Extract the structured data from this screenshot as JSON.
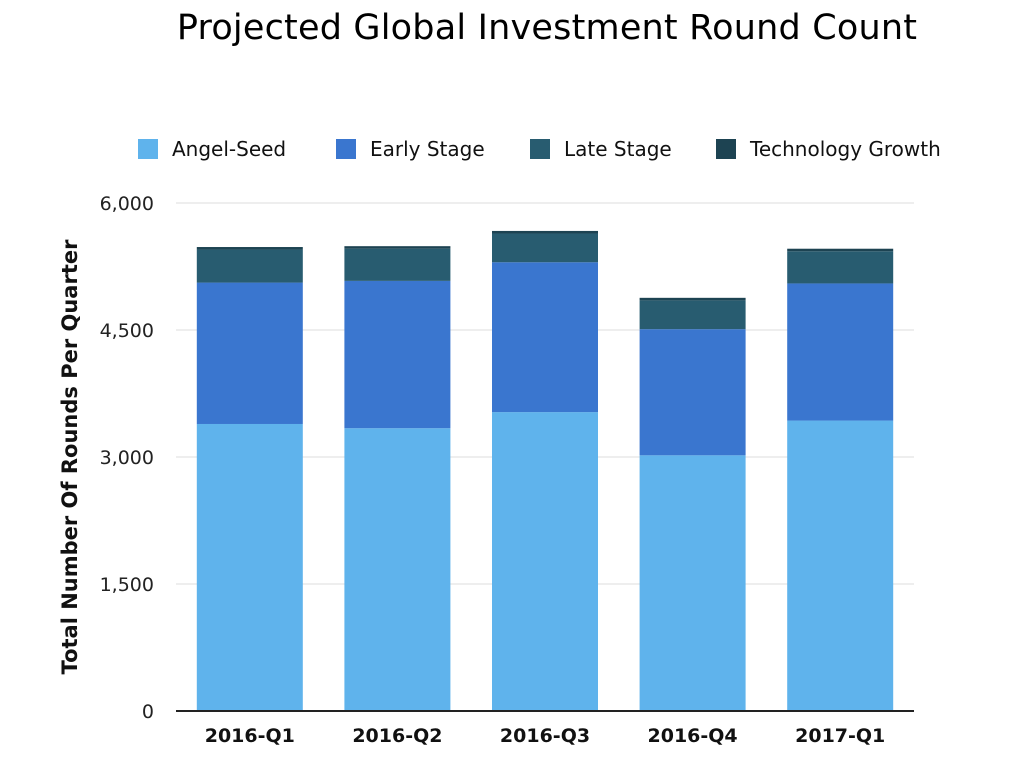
{
  "chart_data": {
    "type": "bar",
    "stacked": true,
    "title": "Projected Global Investment Round Count",
    "xlabel": "",
    "ylabel": "Total Number Of Rounds Per Quarter",
    "categories": [
      "2016-Q1",
      "2016-Q2",
      "2016-Q3",
      "2016-Q4",
      "2017-Q1"
    ],
    "ylim": [
      0,
      6000
    ],
    "yticks": [
      0,
      1500,
      3000,
      4500,
      6000
    ],
    "ytick_labels": [
      "0",
      "1,500",
      "3,000",
      "4,500",
      "6,000"
    ],
    "grid": true,
    "legend_position": "top",
    "series": [
      {
        "name": "Angel-Seed",
        "color": "#5fb3ec",
        "values": [
          3390,
          3340,
          3530,
          3020,
          3430
        ]
      },
      {
        "name": "Early Stage",
        "color": "#3a76cf",
        "values": [
          1670,
          1740,
          1770,
          1490,
          1620
        ]
      },
      {
        "name": "Late Stage",
        "color": "#285c70",
        "values": [
          390,
          380,
          340,
          340,
          380
        ]
      },
      {
        "name": "Technology Growth",
        "color": "#1d4352",
        "values": [
          30,
          30,
          30,
          30,
          30
        ]
      }
    ]
  }
}
